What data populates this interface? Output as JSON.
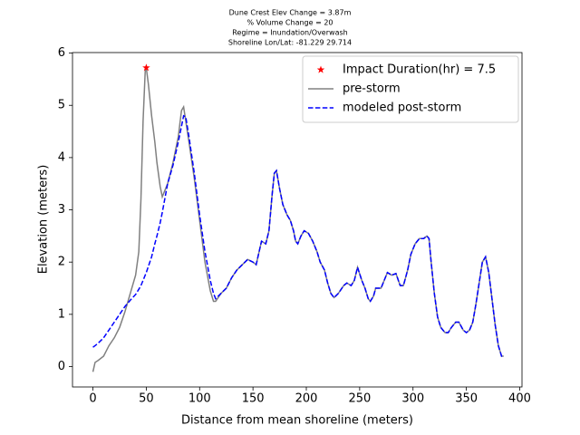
{
  "chart_data": {
    "type": "line",
    "title_lines": [
      "Dune Crest Elev Change = 3.87m",
      "% Volume Change = 20",
      "Regime = Inundation/Overwash",
      "Shoreline Lon/Lat: -81.229 29.714"
    ],
    "x_label": "Distance from mean shoreline (meters)",
    "y_label": "Elevation (meters)",
    "xlim": [
      -19.15,
      402.15
    ],
    "ylim": [
      -0.39,
      6.01
    ],
    "xticks": [
      0,
      50,
      100,
      150,
      200,
      250,
      300,
      350,
      400
    ],
    "yticks": [
      0,
      1,
      2,
      3,
      4,
      5,
      6
    ],
    "legend": "upper right",
    "x": [
      0,
      2,
      5,
      10,
      15,
      20,
      25,
      30,
      35,
      40,
      43,
      45,
      47,
      49,
      50,
      52,
      55,
      58,
      60,
      63,
      65,
      70,
      75,
      80,
      83,
      85,
      87,
      90,
      95,
      100,
      105,
      110,
      113,
      115,
      120,
      125,
      130,
      135,
      140,
      145,
      150,
      153,
      158,
      162,
      165,
      168,
      170,
      172,
      175,
      178,
      182,
      185,
      188,
      190,
      192,
      195,
      198,
      202,
      206,
      210,
      213,
      217,
      220,
      223,
      226,
      230,
      235,
      238,
      242,
      245,
      248,
      252,
      255,
      258,
      260,
      263,
      265,
      270,
      273,
      276,
      280,
      284,
      288,
      291,
      295,
      298,
      302,
      306,
      310,
      313,
      315,
      317,
      320,
      323,
      326,
      330,
      333,
      336,
      340,
      343,
      347,
      350,
      353,
      356,
      359,
      362,
      365,
      368,
      371,
      374,
      377,
      380,
      383,
      385
    ],
    "markers": [
      {
        "name": "Impact Duration(hr) = 7.5",
        "color": "#ff0000",
        "x": [
          50
        ],
        "values": [
          5.72
        ]
      }
    ],
    "series": [
      {
        "name": "pre-storm",
        "color": "#808080",
        "style": "solid",
        "values": [
          -0.1,
          0.08,
          0.12,
          0.2,
          0.4,
          0.55,
          0.75,
          1.05,
          1.4,
          1.75,
          2.2,
          3.2,
          4.7,
          5.65,
          5.72,
          5.4,
          4.8,
          4.3,
          3.9,
          3.45,
          3.25,
          3.5,
          3.9,
          4.4,
          4.9,
          4.97,
          4.7,
          4.3,
          3.6,
          2.8,
          2.0,
          1.45,
          1.25,
          1.25,
          1.4,
          1.5,
          1.7,
          1.85,
          1.95,
          2.05,
          2.0,
          1.95,
          2.4,
          2.35,
          2.6,
          3.3,
          3.7,
          3.75,
          3.4,
          3.1,
          2.9,
          2.8,
          2.6,
          2.4,
          2.35,
          2.5,
          2.6,
          2.55,
          2.4,
          2.2,
          2.0,
          1.85,
          1.6,
          1.4,
          1.32,
          1.4,
          1.55,
          1.6,
          1.55,
          1.65,
          1.9,
          1.65,
          1.5,
          1.3,
          1.25,
          1.35,
          1.5,
          1.5,
          1.65,
          1.8,
          1.75,
          1.78,
          1.55,
          1.55,
          1.85,
          2.15,
          2.35,
          2.45,
          2.45,
          2.5,
          2.45,
          2.0,
          1.4,
          0.95,
          0.75,
          0.65,
          0.65,
          0.75,
          0.85,
          0.85,
          0.7,
          0.65,
          0.7,
          0.85,
          1.2,
          1.6,
          2.0,
          2.1,
          1.8,
          1.3,
          0.8,
          0.4,
          0.2,
          0.2
        ]
      },
      {
        "name": "modeled post-storm",
        "color": "#0000ff",
        "style": "dashed",
        "values": [
          0.37,
          0.4,
          0.45,
          0.55,
          0.7,
          0.85,
          1.0,
          1.15,
          1.27,
          1.38,
          1.48,
          1.55,
          1.65,
          1.75,
          1.8,
          1.92,
          2.1,
          2.35,
          2.5,
          2.75,
          2.95,
          3.5,
          3.85,
          4.3,
          4.6,
          4.8,
          4.78,
          4.4,
          3.7,
          2.9,
          2.2,
          1.65,
          1.4,
          1.3,
          1.4,
          1.5,
          1.7,
          1.85,
          1.95,
          2.05,
          2.0,
          1.95,
          2.4,
          2.35,
          2.6,
          3.3,
          3.7,
          3.75,
          3.4,
          3.1,
          2.9,
          2.8,
          2.6,
          2.4,
          2.35,
          2.5,
          2.6,
          2.55,
          2.4,
          2.2,
          2.0,
          1.85,
          1.6,
          1.4,
          1.32,
          1.4,
          1.55,
          1.6,
          1.55,
          1.65,
          1.9,
          1.65,
          1.5,
          1.3,
          1.25,
          1.35,
          1.5,
          1.5,
          1.65,
          1.8,
          1.75,
          1.78,
          1.55,
          1.55,
          1.85,
          2.15,
          2.35,
          2.45,
          2.45,
          2.5,
          2.45,
          2.0,
          1.4,
          0.95,
          0.75,
          0.65,
          0.65,
          0.75,
          0.85,
          0.85,
          0.7,
          0.65,
          0.7,
          0.85,
          1.2,
          1.6,
          2.0,
          2.1,
          1.8,
          1.3,
          0.8,
          0.4,
          0.2,
          0.2
        ]
      }
    ]
  }
}
